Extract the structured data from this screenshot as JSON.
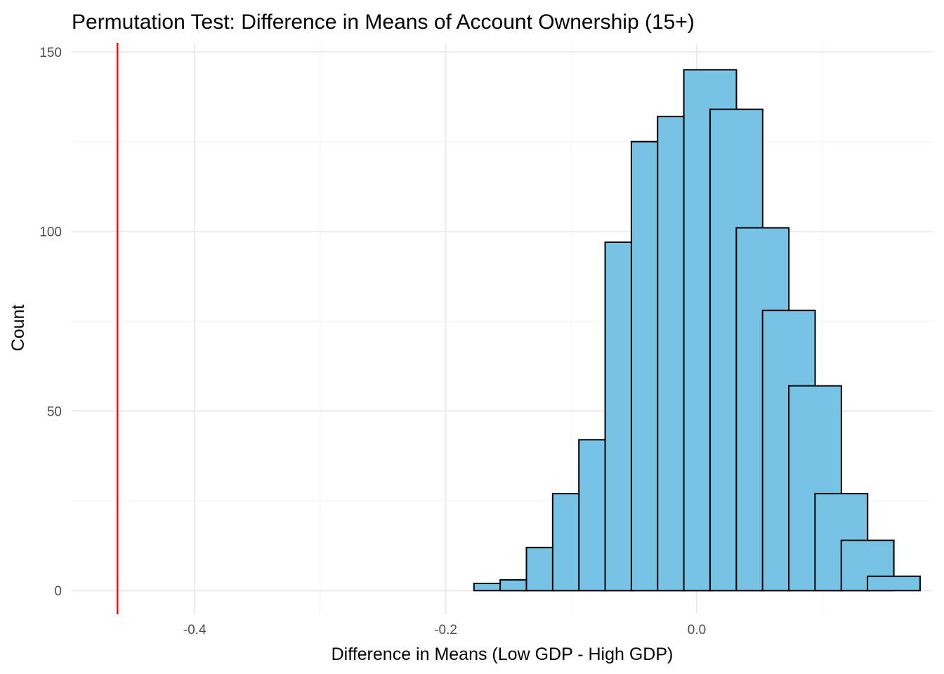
{
  "chart_data": {
    "type": "bar",
    "title": "Permutation Test: Difference in Means of Account Ownership (15+)",
    "xlabel": "Difference in Means (Low GDP - High GDP)",
    "ylabel": "Count",
    "xlim": [
      -0.498,
      0.188
    ],
    "ylim": [
      -6.6,
      152.5
    ],
    "x_ticks": [
      {
        "value": -0.4,
        "label": "-0.4"
      },
      {
        "value": -0.2,
        "label": "-0.2"
      },
      {
        "value": 0.0,
        "label": "0.0"
      }
    ],
    "x_minor": [
      -0.3,
      -0.1,
      0.1
    ],
    "y_ticks": [
      {
        "value": 0,
        "label": "0"
      },
      {
        "value": 50,
        "label": "50"
      },
      {
        "value": 100,
        "label": "100"
      },
      {
        "value": 150,
        "label": "150"
      }
    ],
    "y_minor": [
      25,
      75,
      125
    ],
    "grid": true,
    "bin_width": 0.0419,
    "bins": [
      {
        "x0": -0.4708,
        "count": 0
      },
      {
        "x0": -0.4289,
        "count": 0
      },
      {
        "x0": -0.387,
        "count": 0
      },
      {
        "x0": -0.3451,
        "count": 0
      },
      {
        "x0": -0.3032,
        "count": 0
      },
      {
        "x0": -0.2613,
        "count": 0
      },
      {
        "x0": -0.2194,
        "count": 0
      },
      {
        "x0": -0.1775,
        "count": 2
      },
      {
        "x0": -0.1566,
        "count": 3
      },
      {
        "x0": -0.1357,
        "count": 12
      },
      {
        "x0": -0.1148,
        "count": 27
      },
      {
        "x0": -0.0939,
        "count": 42
      },
      {
        "x0": -0.073,
        "count": 97
      },
      {
        "x0": -0.0521,
        "count": 125
      },
      {
        "x0": -0.0312,
        "count": 132
      },
      {
        "x0": -0.0103,
        "count": 145
      },
      {
        "x0": 0.0106,
        "count": 134
      },
      {
        "x0": 0.0315,
        "count": 101
      },
      {
        "x0": 0.0524,
        "count": 78
      },
      {
        "x0": 0.0733,
        "count": 57
      },
      {
        "x0": 0.0942,
        "count": 27
      },
      {
        "x0": 0.1151,
        "count": 14
      },
      {
        "x0": 0.136,
        "count": 4
      }
    ],
    "observed_difference": -0.4615,
    "colors": {
      "bar_fill": "#77c3e6",
      "bar_stroke": "#000000",
      "observed_line": "#e8141b",
      "grid_major": "#ebebeb",
      "grid_minor": "#f4f4f4"
    }
  }
}
